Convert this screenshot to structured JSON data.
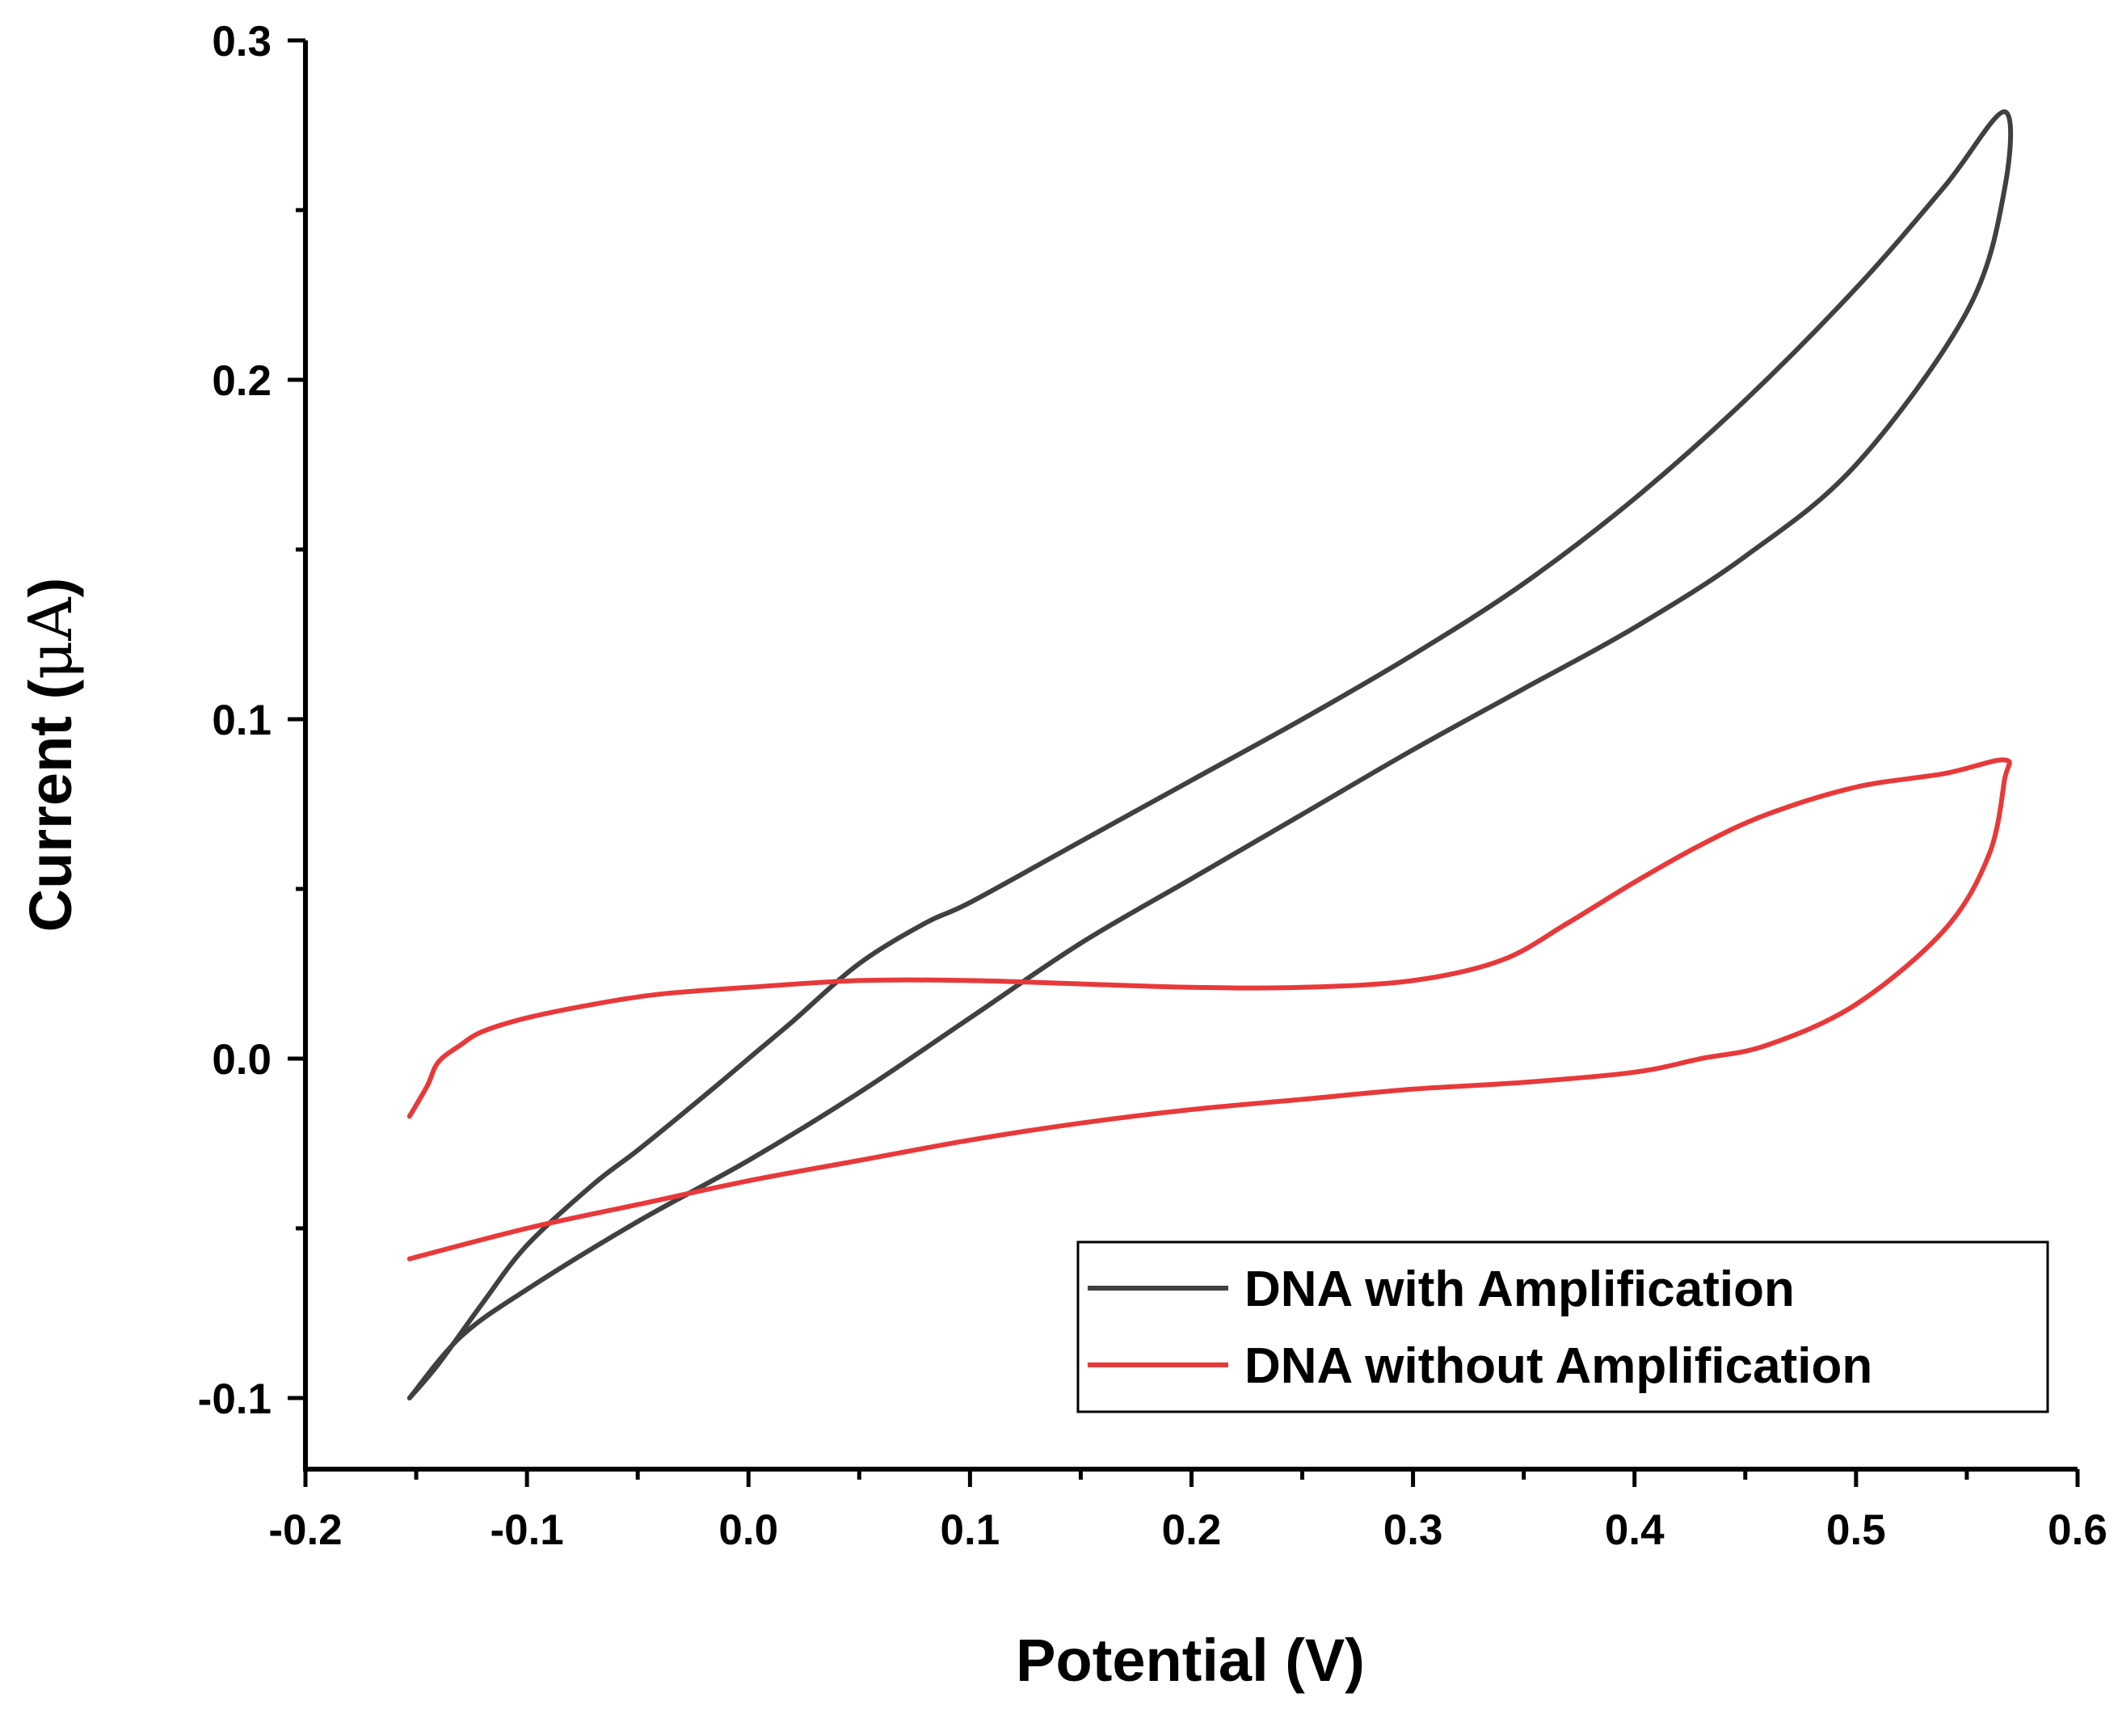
{
  "chart_data": {
    "type": "line",
    "title": "",
    "xlabel": "Potential (V)",
    "ylabel_main": "Current (",
    "ylabel_unit": "μA",
    "ylabel_close": ")",
    "xlim": [
      -0.2,
      0.6
    ],
    "ylim": [
      -0.12,
      0.3
    ],
    "x_ticks": [
      -0.2,
      -0.1,
      0.0,
      0.1,
      0.2,
      0.3,
      0.4,
      0.5,
      0.6
    ],
    "x_tick_labels": [
      "-0.2",
      "-0.1",
      "0.0",
      "0.1",
      "0.2",
      "0.3",
      "0.4",
      "0.5",
      "0.6"
    ],
    "y_ticks": [
      -0.1,
      0.0,
      0.1,
      0.2,
      0.3
    ],
    "y_tick_labels": [
      "-0.1",
      "0.0",
      "0.1",
      "0.2",
      "0.3"
    ],
    "legend_position": "bottom-right",
    "series": [
      {
        "name": "DNA with Amplification",
        "color": "#404040",
        "x": [
          -0.153,
          -0.14,
          -0.12,
          -0.1,
          -0.07,
          -0.05,
          -0.02,
          0.0,
          0.02,
          0.05,
          0.08,
          0.1,
          0.15,
          0.2,
          0.25,
          0.3,
          0.35,
          0.4,
          0.45,
          0.5,
          0.54,
          0.567,
          0.567,
          0.55,
          0.5,
          0.45,
          0.4,
          0.35,
          0.3,
          0.25,
          0.2,
          0.15,
          0.1,
          0.05,
          0.0,
          -0.05,
          -0.1,
          -0.13,
          -0.153
        ],
        "y": [
          -0.1,
          -0.09,
          -0.072,
          -0.055,
          -0.037,
          -0.027,
          -0.011,
          0.0,
          0.011,
          0.028,
          0.04,
          0.046,
          0.064,
          0.082,
          0.1,
          0.119,
          0.14,
          0.165,
          0.194,
          0.227,
          0.257,
          0.279,
          0.256,
          0.22,
          0.175,
          0.148,
          0.127,
          0.109,
          0.091,
          0.072,
          0.053,
          0.034,
          0.012,
          -0.01,
          -0.03,
          -0.048,
          -0.068,
          -0.082,
          -0.1
        ]
      },
      {
        "name": "DNA without Amplification",
        "color": "#e8393a",
        "x": [
          -0.153,
          -0.145,
          -0.14,
          -0.13,
          -0.12,
          -0.1,
          -0.07,
          -0.04,
          0.0,
          0.05,
          0.1,
          0.15,
          0.2,
          0.25,
          0.3,
          0.34,
          0.37,
          0.4,
          0.43,
          0.46,
          0.5,
          0.54,
          0.567,
          0.567,
          0.56,
          0.54,
          0.5,
          0.46,
          0.43,
          0.4,
          0.35,
          0.3,
          0.25,
          0.2,
          0.15,
          0.1,
          0.05,
          0.0,
          -0.05,
          -0.1,
          -0.153
        ],
        "y": [
          -0.017,
          -0.008,
          -0.001,
          0.004,
          0.008,
          0.012,
          0.016,
          0.019,
          0.021,
          0.023,
          0.023,
          0.022,
          0.021,
          0.021,
          0.023,
          0.029,
          0.04,
          0.052,
          0.063,
          0.072,
          0.08,
          0.084,
          0.088,
          0.082,
          0.06,
          0.038,
          0.016,
          0.004,
          0.0,
          -0.004,
          -0.007,
          -0.009,
          -0.012,
          -0.015,
          -0.019,
          -0.024,
          -0.03,
          -0.036,
          -0.043,
          -0.05,
          -0.059
        ]
      }
    ]
  }
}
